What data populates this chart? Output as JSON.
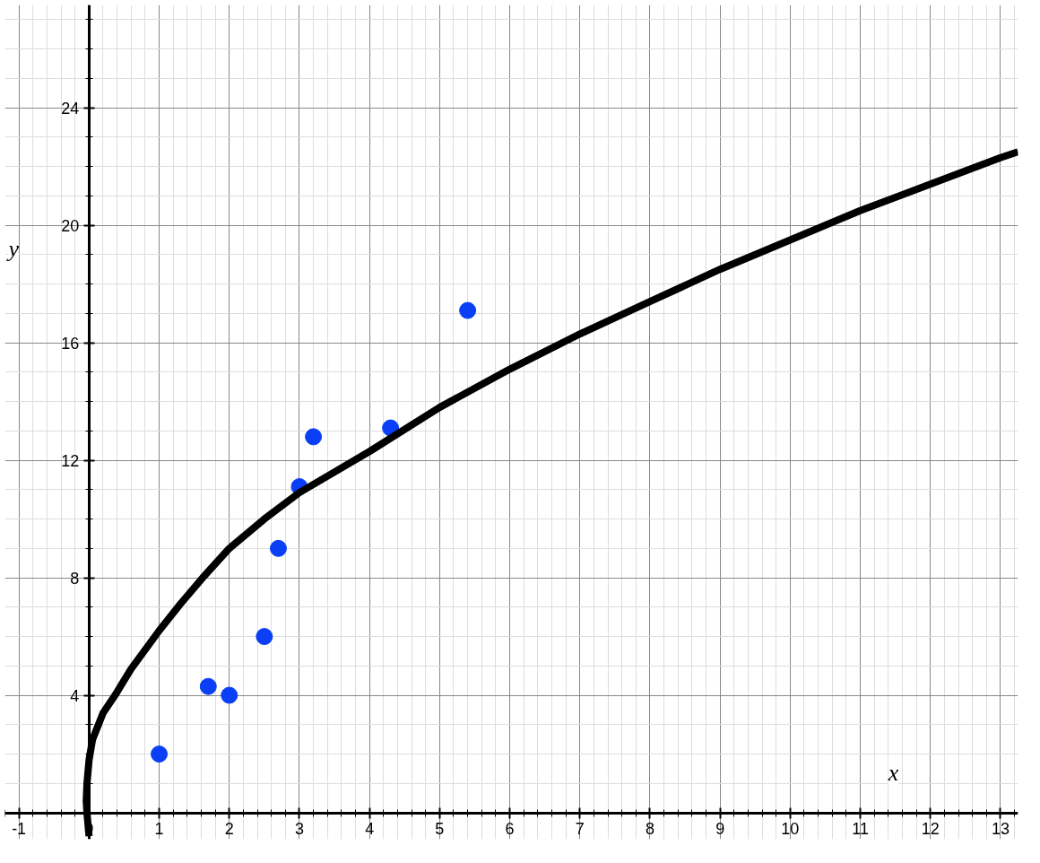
{
  "chart_data": {
    "type": "scatter",
    "xlabel": "x",
    "ylabel": "y",
    "xlim": [
      -1.2,
      13.25
    ],
    "ylim": [
      -0.9,
      27.5
    ],
    "xticks": [
      -1,
      0,
      1,
      2,
      3,
      4,
      5,
      6,
      7,
      8,
      9,
      10,
      11,
      12,
      13
    ],
    "yticks": [
      4,
      8,
      12,
      16,
      20,
      24
    ],
    "grid": true,
    "series": [
      {
        "marker": "circle",
        "color": "#0a3ff5",
        "x": [
          1,
          1.7,
          2,
          2.5,
          2.7,
          3,
          3.2,
          4.3,
          5.4
        ],
        "values": [
          2,
          4.3,
          4,
          6,
          9,
          11.1,
          12.8,
          13.1,
          17.1
        ]
      },
      {
        "type": "line",
        "marker": "none",
        "color": "#000000",
        "line_style": "solid",
        "x": [
          0,
          -0.03,
          -0.04,
          -0.03,
          0,
          0.05,
          0.2,
          0.37,
          0.6,
          1,
          1.3,
          1.62,
          2,
          2.5,
          3,
          4,
          5,
          6,
          7,
          8,
          9,
          10,
          11,
          12,
          13,
          13.25
        ],
        "values": [
          -0.8,
          0,
          0.4,
          1,
          1.8,
          2.5,
          3.4,
          4,
          4.9,
          6.2,
          7.1,
          8,
          9,
          10,
          10.9,
          12.3,
          13.8,
          15.1,
          16.3,
          17.4,
          18.5,
          19.5,
          20.5,
          21.4,
          22.3,
          22.5
        ]
      }
    ]
  }
}
